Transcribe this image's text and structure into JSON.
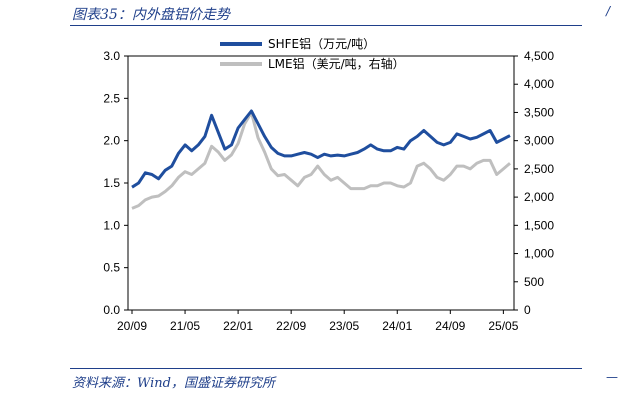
{
  "figure": {
    "title": "图表35：内外盘铝价走势",
    "source": "资料来源：Wind，国盛证券研究所"
  },
  "colors": {
    "shfe": "#1f4e9e",
    "lme": "#bfbfbf",
    "accent": "#1f3f8a"
  },
  "chart_data": {
    "type": "line",
    "x_tick_labels": [
      "20/09",
      "21/05",
      "22/01",
      "22/09",
      "23/05",
      "24/01",
      "24/09",
      "25/05"
    ],
    "x": [
      "20/09",
      "20/10",
      "20/11",
      "20/12",
      "21/01",
      "21/02",
      "21/03",
      "21/04",
      "21/05",
      "21/06",
      "21/07",
      "21/08",
      "21/09",
      "21/10",
      "21/11",
      "21/12",
      "22/01",
      "22/02",
      "22/03",
      "22/04",
      "22/05",
      "22/06",
      "22/07",
      "22/08",
      "22/09",
      "22/10",
      "22/11",
      "22/12",
      "23/01",
      "23/02",
      "23/03",
      "23/04",
      "23/05",
      "23/06",
      "23/07",
      "23/08",
      "23/09",
      "23/10",
      "23/11",
      "23/12",
      "24/01",
      "24/02",
      "24/03",
      "24/04",
      "24/05",
      "24/06",
      "24/07",
      "24/08",
      "24/09",
      "24/10",
      "24/11",
      "24/12",
      "25/01",
      "25/02",
      "25/03",
      "25/04",
      "25/05",
      "25/06"
    ],
    "y_left": {
      "ticks": [
        "0.0",
        "0.5",
        "1.0",
        "1.5",
        "2.0",
        "2.5",
        "3.0"
      ],
      "range": [
        0,
        3.0
      ]
    },
    "y_right": {
      "ticks": [
        "0",
        "500",
        "1,000",
        "1,500",
        "2,000",
        "2,500",
        "3,000",
        "3,500",
        "4,000",
        "4,500"
      ],
      "range": [
        0,
        4500
      ]
    },
    "series": [
      {
        "name": "SHFE铝（万元/吨）",
        "axis": "left",
        "values": [
          1.45,
          1.5,
          1.62,
          1.6,
          1.55,
          1.65,
          1.7,
          1.85,
          1.95,
          1.88,
          1.95,
          2.05,
          2.3,
          2.1,
          1.9,
          1.95,
          2.15,
          2.25,
          2.35,
          2.2,
          2.05,
          1.92,
          1.85,
          1.82,
          1.82,
          1.84,
          1.86,
          1.84,
          1.8,
          1.84,
          1.82,
          1.83,
          1.82,
          1.84,
          1.86,
          1.9,
          1.95,
          1.9,
          1.88,
          1.88,
          1.92,
          1.9,
          2.0,
          2.05,
          2.12,
          2.05,
          1.98,
          1.95,
          1.98,
          2.08,
          2.05,
          2.02,
          2.04,
          2.08,
          2.12,
          1.98,
          2.02,
          2.06
        ]
      },
      {
        "name": "LME铝（美元/吨，右轴）",
        "axis": "right",
        "values": [
          1800,
          1850,
          1950,
          2000,
          2020,
          2100,
          2200,
          2350,
          2450,
          2400,
          2500,
          2600,
          2900,
          2800,
          2650,
          2750,
          2950,
          3300,
          3500,
          3050,
          2800,
          2500,
          2380,
          2400,
          2300,
          2200,
          2350,
          2400,
          2550,
          2400,
          2300,
          2350,
          2250,
          2150,
          2150,
          2150,
          2200,
          2200,
          2250,
          2250,
          2200,
          2180,
          2250,
          2550,
          2600,
          2500,
          2350,
          2300,
          2400,
          2550,
          2550,
          2500,
          2600,
          2650,
          2650,
          2400,
          2500,
          2600
        ]
      }
    ]
  }
}
